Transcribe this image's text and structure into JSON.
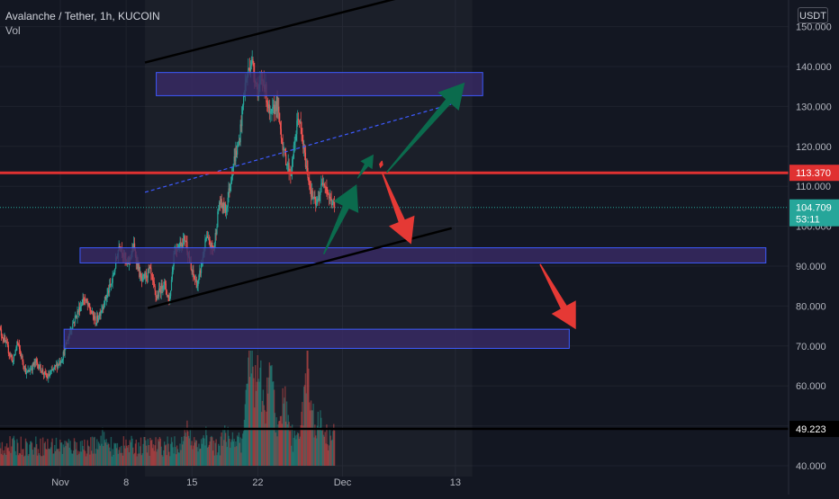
{
  "header": {
    "symbol_line": "Avalanche / Tether, 1h, KUCOIN",
    "indicator": "Vol"
  },
  "currency_badge": "USDT",
  "colors": {
    "background": "#131722",
    "up": "#26a69a",
    "down": "#ef5350",
    "zone_fill": "#3a2a66",
    "zone_border": "#3d5afe",
    "resistance": "#e03131",
    "arrow_up": "#0b6b4d",
    "arrow_down": "#e53935"
  },
  "chart_data": {
    "type": "candlestick",
    "pair": "Avalanche / Tether",
    "timeframe": "1h",
    "exchange": "KUCOIN",
    "y_axis": {
      "position": "right",
      "unit": "USDT",
      "range": [
        39,
        152
      ],
      "ticks": [
        "40.000",
        "50.000",
        "60.000",
        "70.000",
        "80.000",
        "90.000",
        "100.000",
        "110.000",
        "120.000",
        "130.000",
        "140.000",
        "150.000"
      ]
    },
    "x_axis": {
      "ticks": [
        {
          "label": "Nov",
          "day": 1
        },
        {
          "label": "8",
          "day": 8
        },
        {
          "label": "15",
          "day": 15
        },
        {
          "label": "22",
          "day": 22
        },
        {
          "label": "Dec",
          "day": 31
        },
        {
          "label": "13",
          "day": 43
        }
      ]
    },
    "price_path": [
      {
        "day": -5.6,
        "price": 75
      },
      {
        "day": -4,
        "price": 66
      },
      {
        "day": -3.6,
        "price": 71
      },
      {
        "day": -2.6,
        "price": 63
      },
      {
        "day": -1.6,
        "price": 66
      },
      {
        "day": -0.4,
        "price": 62
      },
      {
        "day": 1.2,
        "price": 67
      },
      {
        "day": 2.2,
        "price": 75
      },
      {
        "day": 3.5,
        "price": 82
      },
      {
        "day": 4.8,
        "price": 76
      },
      {
        "day": 6.5,
        "price": 86
      },
      {
        "day": 7.3,
        "price": 96
      },
      {
        "day": 8.1,
        "price": 90
      },
      {
        "day": 8.8,
        "price": 95
      },
      {
        "day": 9.6,
        "price": 86
      },
      {
        "day": 10.5,
        "price": 89
      },
      {
        "day": 11.2,
        "price": 82
      },
      {
        "day": 12.0,
        "price": 86
      },
      {
        "day": 12.6,
        "price": 81
      },
      {
        "day": 13.1,
        "price": 94
      },
      {
        "day": 14.3,
        "price": 97
      },
      {
        "day": 14.9,
        "price": 89
      },
      {
        "day": 15.6,
        "price": 85
      },
      {
        "day": 16.5,
        "price": 97
      },
      {
        "day": 17.3,
        "price": 94
      },
      {
        "day": 17.9,
        "price": 106
      },
      {
        "day": 18.6,
        "price": 104
      },
      {
        "day": 19.4,
        "price": 116
      },
      {
        "day": 20.0,
        "price": 121
      },
      {
        "day": 20.6,
        "price": 135
      },
      {
        "day": 21.3,
        "price": 142
      },
      {
        "day": 22.0,
        "price": 134
      },
      {
        "day": 22.6,
        "price": 137
      },
      {
        "day": 23.3,
        "price": 127
      },
      {
        "day": 24.0,
        "price": 131
      },
      {
        "day": 24.8,
        "price": 118
      },
      {
        "day": 25.5,
        "price": 113
      },
      {
        "day": 26.3,
        "price": 128
      },
      {
        "day": 27.0,
        "price": 117
      },
      {
        "day": 27.7,
        "price": 108
      },
      {
        "day": 28.2,
        "price": 105
      },
      {
        "day": 29.0,
        "price": 112
      },
      {
        "day": 29.6,
        "price": 107
      },
      {
        "day": 30.2,
        "price": 104.709
      }
    ],
    "volume_spikes": [
      {
        "day": 5.5,
        "height": 0.35
      },
      {
        "day": 14.5,
        "height": 0.45
      },
      {
        "day": 16.5,
        "height": 0.35
      },
      {
        "day": 21.3,
        "height": 1.0
      },
      {
        "day": 22.0,
        "height": 0.9
      },
      {
        "day": 23.3,
        "height": 0.75
      },
      {
        "day": 24.8,
        "height": 0.6
      },
      {
        "day": 27.3,
        "height": 0.8
      },
      {
        "day": 28.5,
        "height": 0.4
      }
    ],
    "horizontal_lines": [
      {
        "name": "resistance",
        "price": 113.37,
        "label": "113.370"
      },
      {
        "name": "support",
        "price": 49.223,
        "label": "49.223"
      }
    ],
    "current_price": {
      "price": 104.709,
      "label": "104.709",
      "countdown": "53:11"
    },
    "zones": [
      {
        "name": "upper-zone",
        "day_start": 11.2,
        "day_end": 45.9,
        "price_top": 138.5,
        "price_bottom": 132.7
      },
      {
        "name": "middle-zone",
        "day_start": 3.1,
        "day_end": 76,
        "price_top": 94.6,
        "price_bottom": 90.8
      },
      {
        "name": "lower-zone",
        "day_start": 1.4,
        "day_end": 55.1,
        "price_top": 74.2,
        "price_bottom": 69.4
      }
    ],
    "trend_channel": {
      "upper": {
        "day_start": 10.0,
        "price_start": 141,
        "day_end": 36.7,
        "price_end": 157
      },
      "lower": {
        "day_start": 10.3,
        "price_start": 79.5,
        "day_end": 42.6,
        "price_end": 99.5
      },
      "midline": {
        "day_start": 10.0,
        "price_start": 108.5,
        "day_end": 42.6,
        "price_end": 130.6
      }
    },
    "arrows": [
      {
        "name": "up-arrow-1",
        "color": "up",
        "from_day": 29.0,
        "from_price": 93,
        "to_day": 32.5,
        "to_price": 110.5
      },
      {
        "name": "up-arrow-2",
        "color": "up",
        "from_day": 32.6,
        "from_price": 112,
        "to_day": 34.3,
        "to_price": 118
      },
      {
        "name": "up-arrow-3",
        "color": "up",
        "from_day": 35.7,
        "from_price": 113.5,
        "to_day": 44.0,
        "to_price": 136
      },
      {
        "name": "down-arrow-1",
        "color": "down",
        "from_day": 35.2,
        "from_price": 113.5,
        "to_day": 38.3,
        "to_price": 95.5
      },
      {
        "name": "down-arrow-2",
        "color": "down",
        "from_day": 35.2,
        "from_price": 116.4,
        "to_day": 35.0,
        "to_price": 114.5
      },
      {
        "name": "down-arrow-3",
        "color": "down",
        "from_day": 52.0,
        "from_price": 90.5,
        "to_day": 55.8,
        "to_price": 74.2
      }
    ],
    "highlight_range": {
      "day_start": 10.0,
      "day_end": 44.8
    }
  }
}
